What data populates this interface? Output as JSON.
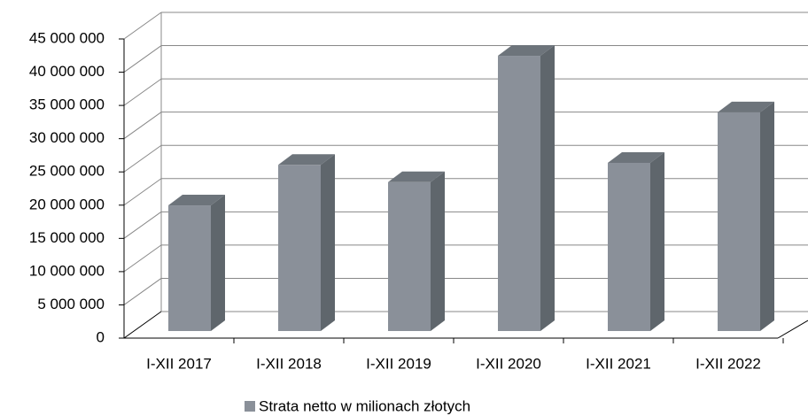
{
  "chart_data": {
    "type": "bar3d",
    "categories": [
      "I-XII 2017",
      "I-XII 2018",
      "I-XII 2019",
      "I-XII 2020",
      "I-XII 2021",
      "I-XII 2022"
    ],
    "series": [
      {
        "name": "Strata netto w milionach złotych",
        "color": "#8a9099",
        "values": [
          18900000,
          25000000,
          22400000,
          41400000,
          25300000,
          32900000
        ]
      }
    ],
    "ylim": [
      0,
      45000000
    ],
    "yticks": [
      0,
      {
        "value": 5000000,
        "label": "5 000 000"
      },
      {
        "value": 10000000,
        "label": "10 000 000"
      },
      {
        "value": 15000000,
        "label": "15 000 000"
      },
      {
        "value": 20000000,
        "label": "20 000 000"
      },
      {
        "value": 25000000,
        "label": "25 000 000"
      },
      {
        "value": 30000000,
        "label": "30 000 000"
      },
      {
        "value": 35000000,
        "label": "35 000 000"
      },
      {
        "value": 40000000,
        "label": "40 000 000"
      },
      {
        "value": 45000000,
        "label": "45 000 000"
      }
    ],
    "grid": true,
    "legend": "bottom"
  }
}
